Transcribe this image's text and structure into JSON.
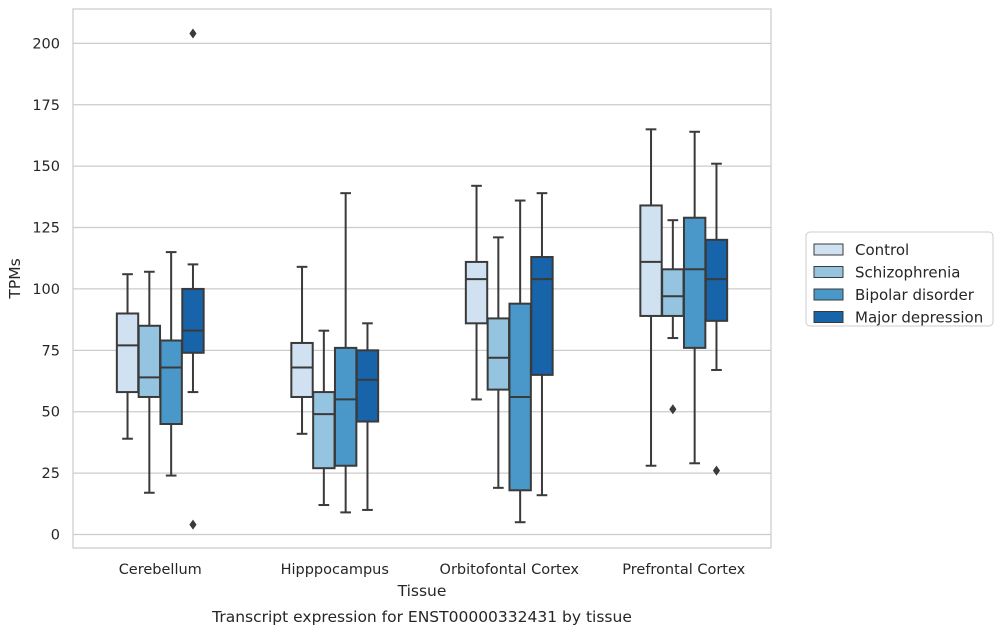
{
  "chart_data": {
    "type": "box",
    "title": "Transcript expression for ENST00000332431 by tissue",
    "xlabel": "Tissue",
    "ylabel": "TPMs",
    "ylim": [
      -5.5,
      214
    ],
    "yticks": [
      0,
      25,
      50,
      75,
      100,
      125,
      150,
      175,
      200
    ],
    "grid": "horizontal",
    "legend_position": "right",
    "categories": [
      "Cerebellum",
      "Hipppocampus",
      "Orbitofontal Cortex",
      "Prefrontal Cortex"
    ],
    "series": [
      {
        "name": "Control",
        "color": "#d0e1f2",
        "boxes": [
          {
            "whislo": 39,
            "q1": 58,
            "med": 77,
            "q3": 90,
            "whishi": 106,
            "fliers": []
          },
          {
            "whislo": 41,
            "q1": 56,
            "med": 68,
            "q3": 78,
            "whishi": 109,
            "fliers": []
          },
          {
            "whislo": 55,
            "q1": 86,
            "med": 104,
            "q3": 111,
            "whishi": 142,
            "fliers": []
          },
          {
            "whislo": 28,
            "q1": 89,
            "med": 111,
            "q3": 134,
            "whishi": 165,
            "fliers": []
          }
        ]
      },
      {
        "name": "Schizophrenia",
        "color": "#94c4df",
        "boxes": [
          {
            "whislo": 17,
            "q1": 56,
            "med": 64,
            "q3": 85,
            "whishi": 107,
            "fliers": []
          },
          {
            "whislo": 12,
            "q1": 27,
            "med": 49,
            "q3": 58,
            "whishi": 83,
            "fliers": []
          },
          {
            "whislo": 19,
            "q1": 59,
            "med": 72,
            "q3": 88,
            "whishi": 121,
            "fliers": []
          },
          {
            "whislo": 80,
            "q1": 89,
            "med": 97,
            "q3": 108,
            "whishi": 128,
            "fliers": [
              51
            ]
          }
        ]
      },
      {
        "name": "Bipolar disorder",
        "color": "#4a98c9",
        "boxes": [
          {
            "whislo": 24,
            "q1": 45,
            "med": 68,
            "q3": 79,
            "whishi": 115,
            "fliers": []
          },
          {
            "whislo": 9,
            "q1": 28,
            "med": 55,
            "q3": 76,
            "whishi": 139,
            "fliers": []
          },
          {
            "whislo": 5,
            "q1": 18,
            "med": 56,
            "q3": 94,
            "whishi": 136,
            "fliers": []
          },
          {
            "whislo": 29,
            "q1": 76,
            "med": 108,
            "q3": 129,
            "whishi": 164,
            "fliers": []
          }
        ]
      },
      {
        "name": "Major depression",
        "color": "#1764ab",
        "boxes": [
          {
            "whislo": 58,
            "q1": 74,
            "med": 83,
            "q3": 100,
            "whishi": 110,
            "fliers": [
              204,
              4
            ]
          },
          {
            "whislo": 10,
            "q1": 46,
            "med": 63,
            "q3": 75,
            "whishi": 86,
            "fliers": []
          },
          {
            "whislo": 16,
            "q1": 65,
            "med": 104,
            "q3": 113,
            "whishi": 139,
            "fliers": []
          },
          {
            "whislo": 67,
            "q1": 87,
            "med": 104,
            "q3": 120,
            "whishi": 151,
            "fliers": [
              26
            ]
          }
        ]
      }
    ]
  }
}
